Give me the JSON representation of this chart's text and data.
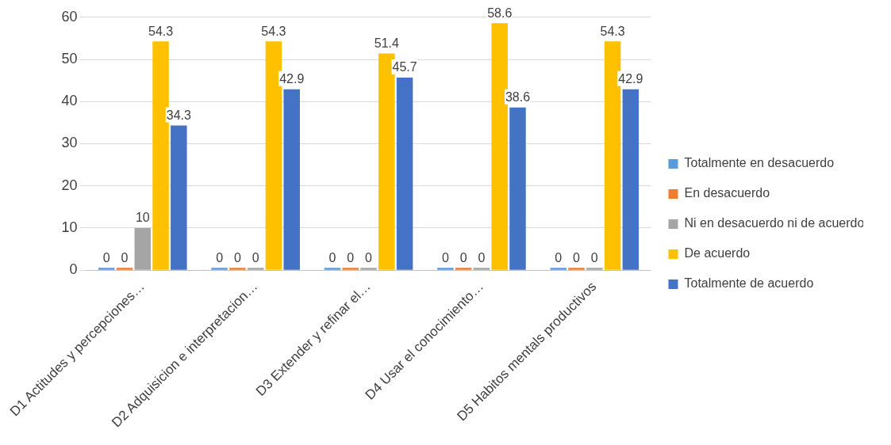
{
  "chart_data": {
    "type": "bar",
    "categories": [
      "D1 Actitudes y percepciones…",
      "D2 Adquisicion e interpretacion…",
      "D3 Extender y refinar el…",
      "D4 Usar el conocimiento…",
      "D5 Habitos mentals productivos"
    ],
    "series": [
      {
        "name": "Totalmente en desacuerdo",
        "color": "#5b9bd5",
        "values": [
          0,
          0,
          0,
          0,
          0
        ]
      },
      {
        "name": "En desacuerdo",
        "color": "#ed7d31",
        "values": [
          0,
          0,
          0,
          0,
          0
        ]
      },
      {
        "name": "Ni en desacuerdo ni de acuerdo",
        "color": "#a5a5a5",
        "values": [
          10,
          0,
          0,
          0,
          0
        ]
      },
      {
        "name": "De acuerdo",
        "color": "#ffc000",
        "values": [
          54.3,
          54.3,
          51.4,
          58.6,
          54.3
        ]
      },
      {
        "name": "Totalmente de acuerdo",
        "color": "#4472c4",
        "values": [
          34.3,
          42.9,
          45.7,
          38.6,
          42.9
        ]
      }
    ],
    "ylim": [
      0,
      60
    ],
    "yticks": [
      0,
      10,
      20,
      30,
      40,
      50,
      60
    ],
    "grid": "y",
    "legend": "right",
    "data_labels": true
  }
}
